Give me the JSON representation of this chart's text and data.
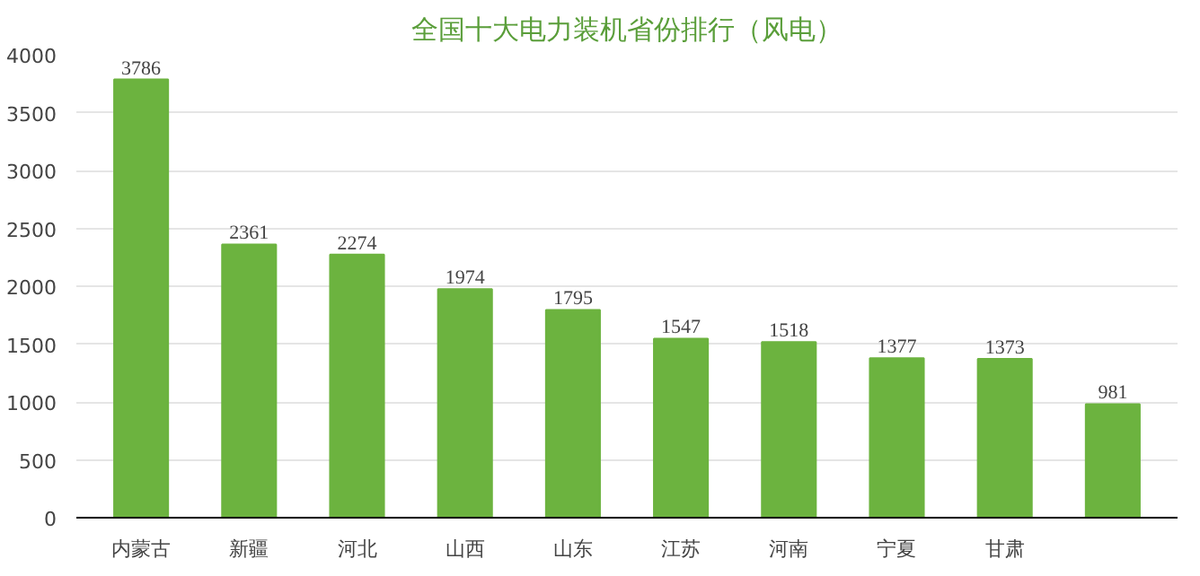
{
  "chart_data": {
    "type": "bar",
    "title": "全国十大电力装机省份排行（风电）",
    "categories": [
      "内蒙古",
      "新疆",
      "河北",
      "山西",
      "山东",
      "江苏",
      "河南",
      "宁夏",
      "甘肃",
      null
    ],
    "values": [
      3786,
      2361,
      2274,
      1974,
      1795,
      1547,
      1518,
      1377,
      1373,
      981
    ],
    "color": "#6cb33f",
    "ylim": [
      0,
      4000
    ],
    "yticks": [
      0,
      500,
      1000,
      1500,
      2000,
      2500,
      3000,
      3500,
      4000
    ],
    "grid": "y",
    "data_labels": true
  }
}
